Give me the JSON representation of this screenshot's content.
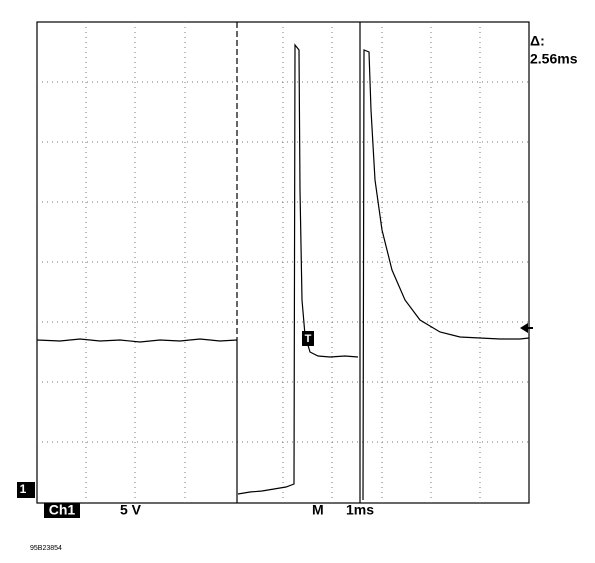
{
  "readout": {
    "delta_label": "Δ:",
    "delta_value": "2.56ms"
  },
  "channel": {
    "marker": "1",
    "name": "Ch1",
    "scale": "5 V"
  },
  "timebase": {
    "label": "M",
    "scale": "1ms"
  },
  "trigger_marker": "T",
  "figure_id": "95B23854"
}
